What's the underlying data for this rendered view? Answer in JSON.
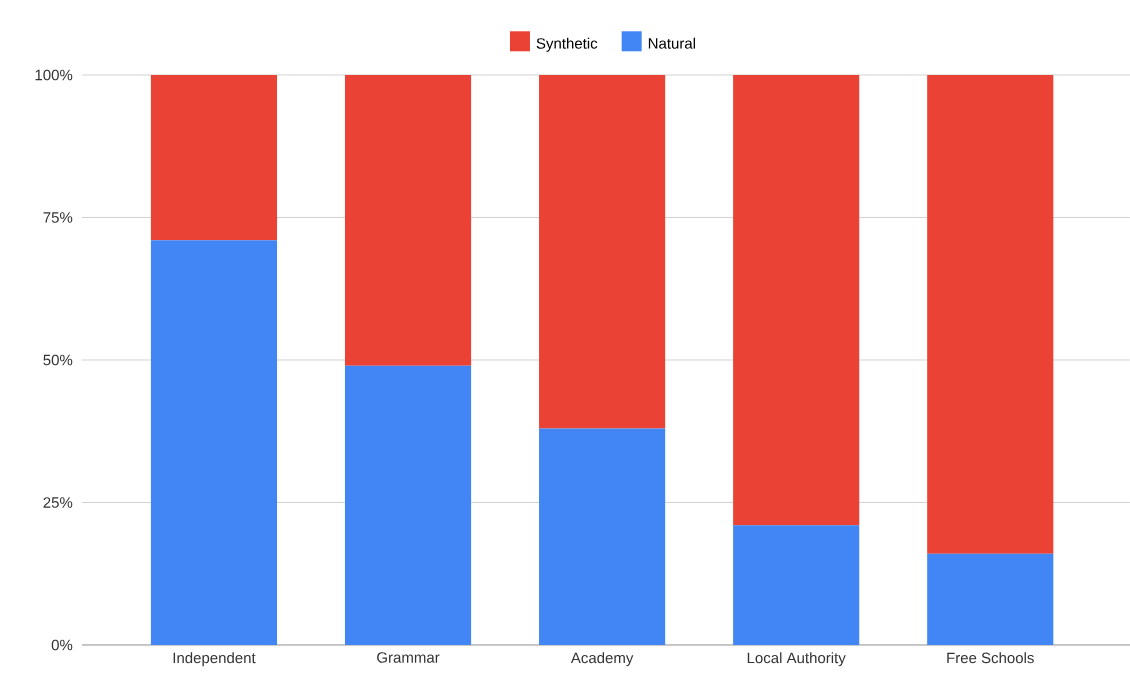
{
  "chart_data": {
    "type": "bar",
    "stacked": true,
    "categories": [
      "Independent",
      "Grammar",
      "Academy",
      "Local Authority",
      "Free Schools"
    ],
    "series": [
      {
        "name": "Natural",
        "color": "#4285f4",
        "values": [
          71,
          49,
          38,
          21,
          16
        ]
      },
      {
        "name": "Synthetic",
        "color": "#ea4335",
        "values": [
          29,
          51,
          62,
          79,
          84
        ]
      }
    ],
    "ylim": [
      0,
      100
    ],
    "yticks": [
      {
        "value": 0,
        "label": "0%"
      },
      {
        "value": 25,
        "label": "25%"
      },
      {
        "value": 50,
        "label": "50%"
      },
      {
        "value": 75,
        "label": "75%"
      },
      {
        "value": 100,
        "label": "100%"
      }
    ],
    "grid": "y",
    "legend": "top"
  }
}
